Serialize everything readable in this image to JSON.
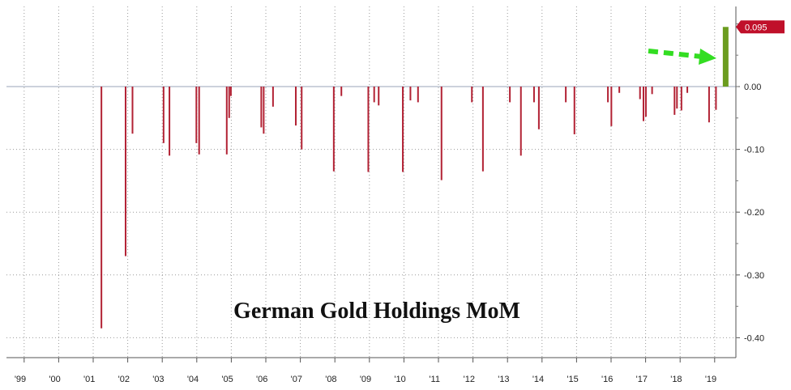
{
  "chart_data": {
    "type": "bar",
    "title": "German Gold Holdings MoM",
    "xlabel": "",
    "ylabel": "",
    "ylim": [
      -0.42,
      0.1
    ],
    "y_ticks": [
      0.0,
      -0.1,
      -0.2,
      -0.3,
      -0.4
    ],
    "y_tick_labels": [
      "0.00",
      "-0.10",
      "-0.20",
      "-0.30",
      "-0.40"
    ],
    "x_range": [
      1999.0,
      2020.0
    ],
    "x_ticks": [
      1999,
      2000,
      2001,
      2002,
      2003,
      2004,
      2005,
      2006,
      2007,
      2008,
      2009,
      2010,
      2011,
      2012,
      2013,
      2014,
      2015,
      2016,
      2017,
      2018,
      2019
    ],
    "x_tick_labels": [
      "'99",
      "'00",
      "'01",
      "'02",
      "'03",
      "'04",
      "'05",
      "'06",
      "'07",
      "'08",
      "'09",
      "'10",
      "'11",
      "'12",
      "'13",
      "'14",
      "'15",
      "'16",
      "'17",
      "'18",
      "'19"
    ],
    "grid": "dotted",
    "axis_side": "right",
    "series": [
      {
        "color": "#b22234",
        "x": [
          2001.75,
          2002.45,
          2002.65,
          2003.55,
          2003.72,
          2004.5,
          2004.58,
          2005.38,
          2005.45,
          2005.5,
          2006.38,
          2006.45,
          2006.72,
          2007.38,
          2007.55,
          2008.48,
          2008.7,
          2009.48,
          2009.65,
          2009.78,
          2010.48,
          2010.7,
          2010.92,
          2011.6,
          2012.48,
          2012.8,
          2013.58,
          2013.9,
          2014.28,
          2014.42,
          2015.2,
          2015.45,
          2016.42,
          2016.52,
          2016.75,
          2017.35,
          2017.45,
          2017.52,
          2017.7,
          2018.35,
          2018.42,
          2018.55,
          2018.72,
          2019.35,
          2019.55
        ],
        "values": [
          -0.385,
          -0.27,
          -0.075,
          -0.09,
          -0.11,
          -0.09,
          -0.108,
          -0.108,
          -0.05,
          -0.015,
          -0.065,
          -0.075,
          -0.032,
          -0.062,
          -0.1,
          -0.135,
          -0.015,
          -0.136,
          -0.025,
          -0.03,
          -0.136,
          -0.022,
          -0.025,
          -0.149,
          -0.025,
          -0.135,
          -0.025,
          -0.11,
          -0.025,
          -0.068,
          -0.025,
          -0.076,
          -0.025,
          -0.063,
          -0.01,
          -0.02,
          -0.055,
          -0.048,
          -0.012,
          -0.045,
          -0.035,
          -0.038,
          -0.01,
          -0.057,
          -0.037
        ]
      },
      {
        "color": "#6b9c1f",
        "x": [
          2019.83
        ],
        "values": [
          0.095
        ]
      }
    ],
    "annotations": [
      {
        "text": "0.095",
        "type": "last-value-callout",
        "color": "#c0102a"
      },
      {
        "type": "arrow",
        "style": "dashed",
        "color": "#33dd22"
      }
    ]
  }
}
